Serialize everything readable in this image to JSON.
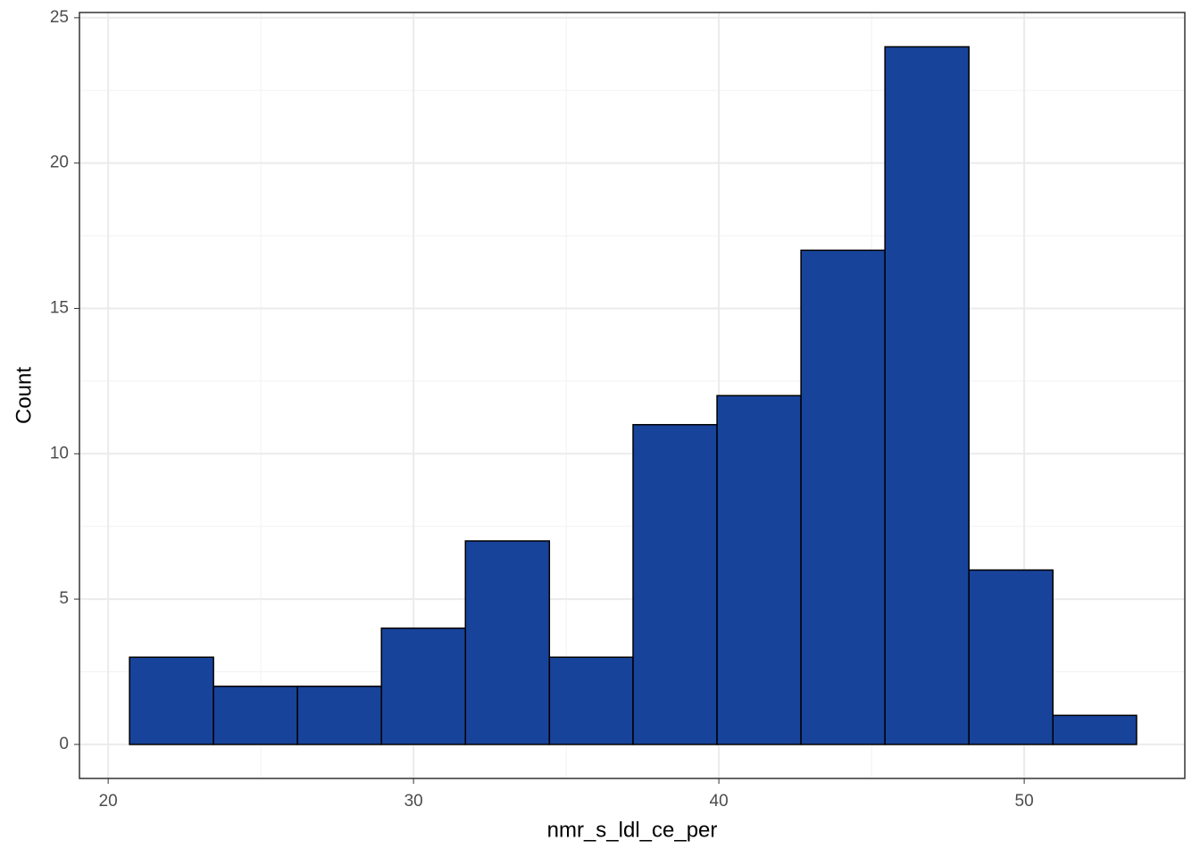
{
  "chart_data": {
    "type": "histogram",
    "x_label": "nmr_s_ldl_ce_per",
    "y_label": "Count",
    "bins": [
      20.7,
      23.45,
      26.2,
      28.95,
      31.7,
      34.45,
      37.19,
      39.94,
      42.69,
      45.44,
      48.19,
      50.94,
      53.68
    ],
    "values": [
      3,
      2,
      2,
      4,
      7,
      3,
      11,
      12,
      17,
      24,
      6,
      1
    ],
    "color": "#18439a",
    "xlim": [
      19.06,
      55.26
    ],
    "ylim": [
      -1.17,
      25.18
    ],
    "xticks": [
      20,
      30,
      40,
      50
    ],
    "yticks": [
      0,
      5,
      10,
      15,
      20,
      25
    ],
    "grid": true
  }
}
